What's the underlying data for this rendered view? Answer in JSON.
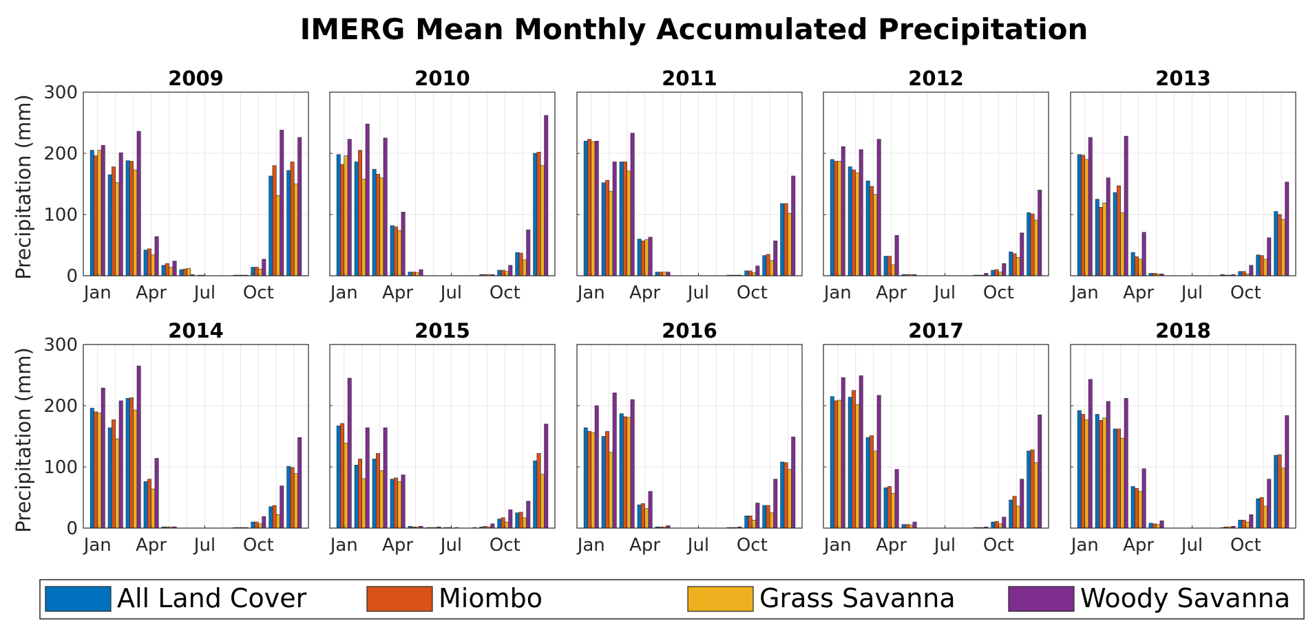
{
  "chart_data": {
    "type": "bar",
    "title": "IMERG Mean Monthly Accumulated Precipitation",
    "ylabel": "Precipitation (mm)",
    "ylim": [
      0,
      300
    ],
    "yticks": [
      "0",
      "100",
      "200",
      "300"
    ],
    "grid": true,
    "xticks": [
      "Jan",
      "Apr",
      "Jul",
      "Oct"
    ],
    "xtick_months": [
      1,
      4,
      7,
      10
    ],
    "months": [
      1,
      2,
      3,
      4,
      5,
      6,
      7,
      8,
      9,
      10,
      11,
      12
    ],
    "series_names": [
      "All Land Cover",
      "Miombo",
      "Grass Savanna",
      "Woody Savanna"
    ],
    "colors": [
      "#0072BD",
      "#D95319",
      "#EDB120",
      "#7E2F8E"
    ],
    "legend_position": "bottom",
    "panels": [
      {
        "title": "2009",
        "values": [
          [
            205,
            165,
            188,
            42,
            17,
            10,
            1,
            0,
            1,
            14,
            163,
            172
          ],
          [
            196,
            178,
            187,
            44,
            20,
            11,
            1,
            0,
            1,
            14,
            180,
            186
          ],
          [
            205,
            152,
            173,
            34,
            14,
            12,
            0,
            0,
            1,
            11,
            131,
            150
          ],
          [
            213,
            201,
            236,
            64,
            24,
            2,
            0,
            0,
            1,
            27,
            238,
            226
          ]
        ]
      },
      {
        "title": "2010",
        "values": [
          [
            198,
            186,
            174,
            82,
            6,
            0,
            0,
            0,
            2,
            9,
            38,
            200
          ],
          [
            182,
            205,
            166,
            80,
            6,
            0,
            0,
            0,
            2,
            9,
            37,
            202
          ],
          [
            196,
            158,
            160,
            74,
            5,
            0,
            0,
            0,
            2,
            7,
            26,
            180
          ],
          [
            223,
            248,
            225,
            104,
            10,
            0,
            0,
            0,
            2,
            17,
            75,
            262
          ]
        ]
      },
      {
        "title": "2011",
        "values": [
          [
            220,
            152,
            186,
            60,
            6,
            0,
            0,
            0,
            1,
            8,
            33,
            118
          ],
          [
            223,
            156,
            186,
            57,
            6,
            0,
            0,
            0,
            1,
            8,
            35,
            118
          ],
          [
            219,
            138,
            171,
            59,
            6,
            0,
            0,
            0,
            1,
            5,
            25,
            102
          ],
          [
            220,
            186,
            233,
            63,
            6,
            0,
            0,
            0,
            1,
            16,
            57,
            163
          ]
        ]
      },
      {
        "title": "2012",
        "values": [
          [
            190,
            178,
            155,
            32,
            2,
            0,
            0,
            0,
            1,
            9,
            39,
            103
          ],
          [
            187,
            173,
            146,
            32,
            2,
            0,
            0,
            0,
            1,
            10,
            36,
            101
          ],
          [
            187,
            168,
            133,
            18,
            2,
            0,
            0,
            0,
            1,
            6,
            30,
            91
          ],
          [
            211,
            206,
            223,
            66,
            2,
            0,
            0,
            0,
            4,
            20,
            70,
            140
          ]
        ]
      },
      {
        "title": "2013",
        "values": [
          [
            198,
            125,
            136,
            38,
            4,
            0,
            0,
            0,
            2,
            7,
            34,
            105
          ],
          [
            197,
            112,
            147,
            31,
            4,
            0,
            0,
            0,
            1,
            7,
            33,
            100
          ],
          [
            190,
            119,
            103,
            27,
            3,
            0,
            0,
            0,
            1,
            3,
            27,
            92
          ],
          [
            226,
            160,
            228,
            71,
            3,
            0,
            0,
            0,
            2,
            17,
            62,
            153
          ]
        ]
      },
      {
        "title": "2014",
        "values": [
          [
            196,
            164,
            212,
            76,
            2,
            0,
            0,
            0,
            1,
            10,
            35,
            101
          ],
          [
            190,
            177,
            213,
            80,
            2,
            0,
            0,
            0,
            1,
            10,
            37,
            99
          ],
          [
            188,
            146,
            193,
            64,
            2,
            0,
            0,
            0,
            1,
            7,
            22,
            89
          ],
          [
            229,
            208,
            265,
            114,
            2,
            0,
            0,
            0,
            1,
            19,
            69,
            148
          ]
        ]
      },
      {
        "title": "2015",
        "values": [
          [
            167,
            103,
            113,
            80,
            3,
            1,
            1,
            0,
            2,
            15,
            25,
            110
          ],
          [
            171,
            113,
            122,
            82,
            2,
            1,
            1,
            0,
            3,
            17,
            26,
            122
          ],
          [
            139,
            81,
            94,
            76,
            2,
            1,
            0,
            0,
            2,
            10,
            17,
            88
          ],
          [
            245,
            164,
            164,
            87,
            3,
            2,
            1,
            1,
            7,
            30,
            44,
            170
          ]
        ]
      },
      {
        "title": "2016",
        "values": [
          [
            164,
            150,
            187,
            38,
            2,
            0,
            0,
            0,
            1,
            20,
            37,
            108
          ],
          [
            158,
            158,
            182,
            40,
            2,
            0,
            0,
            0,
            1,
            20,
            37,
            107
          ],
          [
            156,
            124,
            181,
            32,
            2,
            0,
            0,
            0,
            1,
            13,
            25,
            96
          ],
          [
            200,
            221,
            210,
            60,
            4,
            0,
            0,
            0,
            2,
            41,
            80,
            149
          ]
        ]
      },
      {
        "title": "2017",
        "values": [
          [
            215,
            214,
            148,
            66,
            6,
            0,
            0,
            0,
            1,
            10,
            46,
            126
          ],
          [
            208,
            225,
            151,
            68,
            6,
            0,
            0,
            0,
            1,
            11,
            52,
            128
          ],
          [
            209,
            202,
            126,
            57,
            5,
            0,
            0,
            0,
            1,
            7,
            36,
            107
          ],
          [
            246,
            249,
            217,
            96,
            10,
            0,
            0,
            0,
            2,
            18,
            80,
            185
          ]
        ]
      },
      {
        "title": "2018",
        "values": [
          [
            192,
            186,
            162,
            68,
            8,
            0,
            0,
            0,
            1,
            13,
            48,
            119
          ],
          [
            186,
            176,
            162,
            65,
            7,
            0,
            0,
            0,
            2,
            13,
            50,
            120
          ],
          [
            177,
            180,
            147,
            60,
            6,
            0,
            0,
            0,
            2,
            10,
            36,
            98
          ],
          [
            243,
            207,
            212,
            97,
            12,
            0,
            0,
            0,
            3,
            22,
            80,
            184
          ]
        ]
      }
    ]
  },
  "legend": {
    "items": [
      {
        "label": "All Land Cover"
      },
      {
        "label": "Miombo"
      },
      {
        "label": "Grass Savanna"
      },
      {
        "label": "Woody Savanna"
      }
    ]
  }
}
